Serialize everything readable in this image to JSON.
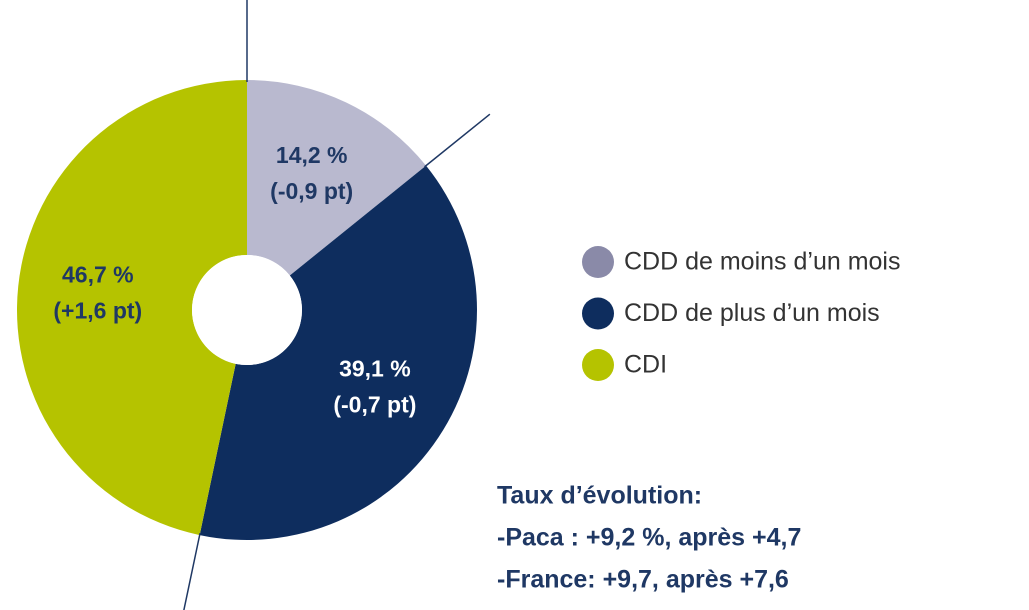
{
  "chart_data": {
    "type": "donut",
    "categories": [
      "CDD de moins d’un mois",
      "CDD de plus d’un mois",
      "CDI"
    ],
    "values": [
      14.2,
      39.1,
      46.7
    ],
    "value_labels": [
      "14,2 %",
      "39,1 %",
      "46,7 %"
    ],
    "changes": [
      -0.9,
      -0.7,
      1.6
    ],
    "change_labels": [
      "(-0,9 pt)",
      "(-0,7 pt)",
      "(+1,6 pt)"
    ],
    "colors": [
      "#b9b9cf",
      "#0e2d5e",
      "#b5c300"
    ],
    "legend_colors": [
      "#8a8aa8",
      "#0e2d5e",
      "#b5c300"
    ],
    "annotations": [
      "Taux d’évolution:",
      "-Paca : +9,2 %, après +4,7",
      "-France: +9,7, après +7,6"
    ]
  }
}
